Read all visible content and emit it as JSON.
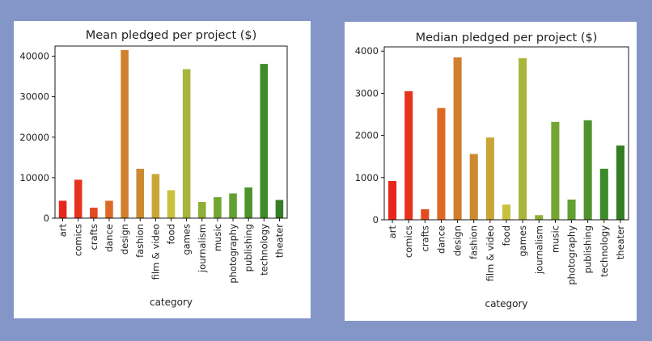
{
  "background_color": "#8496c8",
  "chart_data": [
    {
      "type": "bar",
      "title": "Mean pledged per project ($)",
      "xlabel": "category",
      "ylabel": "",
      "ylim": [
        0,
        42500
      ],
      "yticks": [
        0,
        10000,
        20000,
        30000,
        40000
      ],
      "categories": [
        "art",
        "comics",
        "crafts",
        "dance",
        "design",
        "fashion",
        "film & video",
        "food",
        "games",
        "journalism",
        "music",
        "photography",
        "publishing",
        "technology",
        "theater"
      ],
      "values": [
        4300,
        9500,
        2600,
        4300,
        41500,
        12200,
        10900,
        6900,
        36800,
        4000,
        5200,
        6100,
        7600,
        38100,
        4500
      ],
      "colors": [
        "#e8271c",
        "#e6331e",
        "#e34a1f",
        "#dd6a24",
        "#d17f2c",
        "#cb8a30",
        "#c8a536",
        "#c7c23b",
        "#a8b43a",
        "#8fae37",
        "#74a433",
        "#62a033",
        "#4f932e",
        "#3e8b2a",
        "#357d24"
      ],
      "grid": false
    },
    {
      "type": "bar",
      "title": "Median pledged per project ($)",
      "xlabel": "category",
      "ylabel": "",
      "ylim": [
        0,
        4100
      ],
      "yticks": [
        0,
        1000,
        2000,
        3000,
        4000
      ],
      "categories": [
        "art",
        "comics",
        "crafts",
        "dance",
        "design",
        "fashion",
        "film & video",
        "food",
        "games",
        "journalism",
        "music",
        "photography",
        "publishing",
        "technology",
        "theater"
      ],
      "values": [
        920,
        3050,
        250,
        2650,
        3850,
        1560,
        1950,
        360,
        3830,
        110,
        2320,
        480,
        2360,
        1210,
        1760
      ],
      "colors": [
        "#e8271c",
        "#e6331e",
        "#e34a1f",
        "#dd6a24",
        "#d17f2c",
        "#cb8a30",
        "#c8a536",
        "#c7c23b",
        "#a8b43a",
        "#8fae37",
        "#74a433",
        "#62a033",
        "#4f932e",
        "#3e8b2a",
        "#357d24"
      ],
      "grid": false
    }
  ]
}
